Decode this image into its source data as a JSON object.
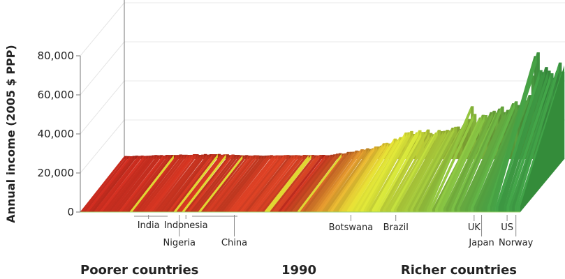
{
  "chart_data": {
    "type": "bar",
    "variant": "3d-bar-by-country-and-decile",
    "title": "1990",
    "ylabel": "Annual income (2005 $ PPP)",
    "ylim": [
      0,
      80000
    ],
    "yticks": [
      0,
      20000,
      40000,
      60000,
      80000
    ],
    "ytick_labels": [
      "0",
      "20,000",
      "40,000",
      "60,000",
      "80,000"
    ],
    "grid": true,
    "x_left_label": "Poorer countries",
    "x_right_label": "Richer countries",
    "country_labels": [
      {
        "name": "India",
        "pos": 0.155
      },
      {
        "name": "Nigeria",
        "pos": 0.225
      },
      {
        "name": "Indonesia",
        "pos": 0.24
      },
      {
        "name": "China",
        "pos": 0.35
      },
      {
        "name": "Botswana",
        "pos": 0.615
      },
      {
        "name": "Brazil",
        "pos": 0.717
      },
      {
        "name": "UK",
        "pos": 0.895
      },
      {
        "name": "Japan",
        "pos": 0.912
      },
      {
        "name": "US",
        "pos": 0.97
      },
      {
        "name": "Norway",
        "pos": 0.99
      }
    ],
    "top_decile_profile": {
      "pos": [
        0,
        0.1,
        0.2,
        0.3,
        0.46,
        0.5,
        0.55,
        0.6,
        0.62,
        0.65,
        0.72,
        0.78,
        0.79,
        0.8,
        0.82,
        0.88,
        0.92,
        0.935,
        0.95,
        0.97,
        1.0
      ],
      "income": [
        1500,
        2000,
        2500,
        1800,
        2000,
        3000,
        5000,
        8000,
        10000,
        14000,
        14000,
        18000,
        28000,
        18000,
        22000,
        28000,
        33000,
        54000,
        45000,
        44000,
        48000
      ]
    },
    "bottom_decile_profile": {
      "pos": [
        0,
        0.5,
        0.8,
        1.0
      ],
      "income": [
        200,
        500,
        1500,
        3000
      ]
    },
    "colors": {
      "poorest": "#c62a1e",
      "middle": "#e4e436",
      "richest": "#3f9d45"
    }
  }
}
